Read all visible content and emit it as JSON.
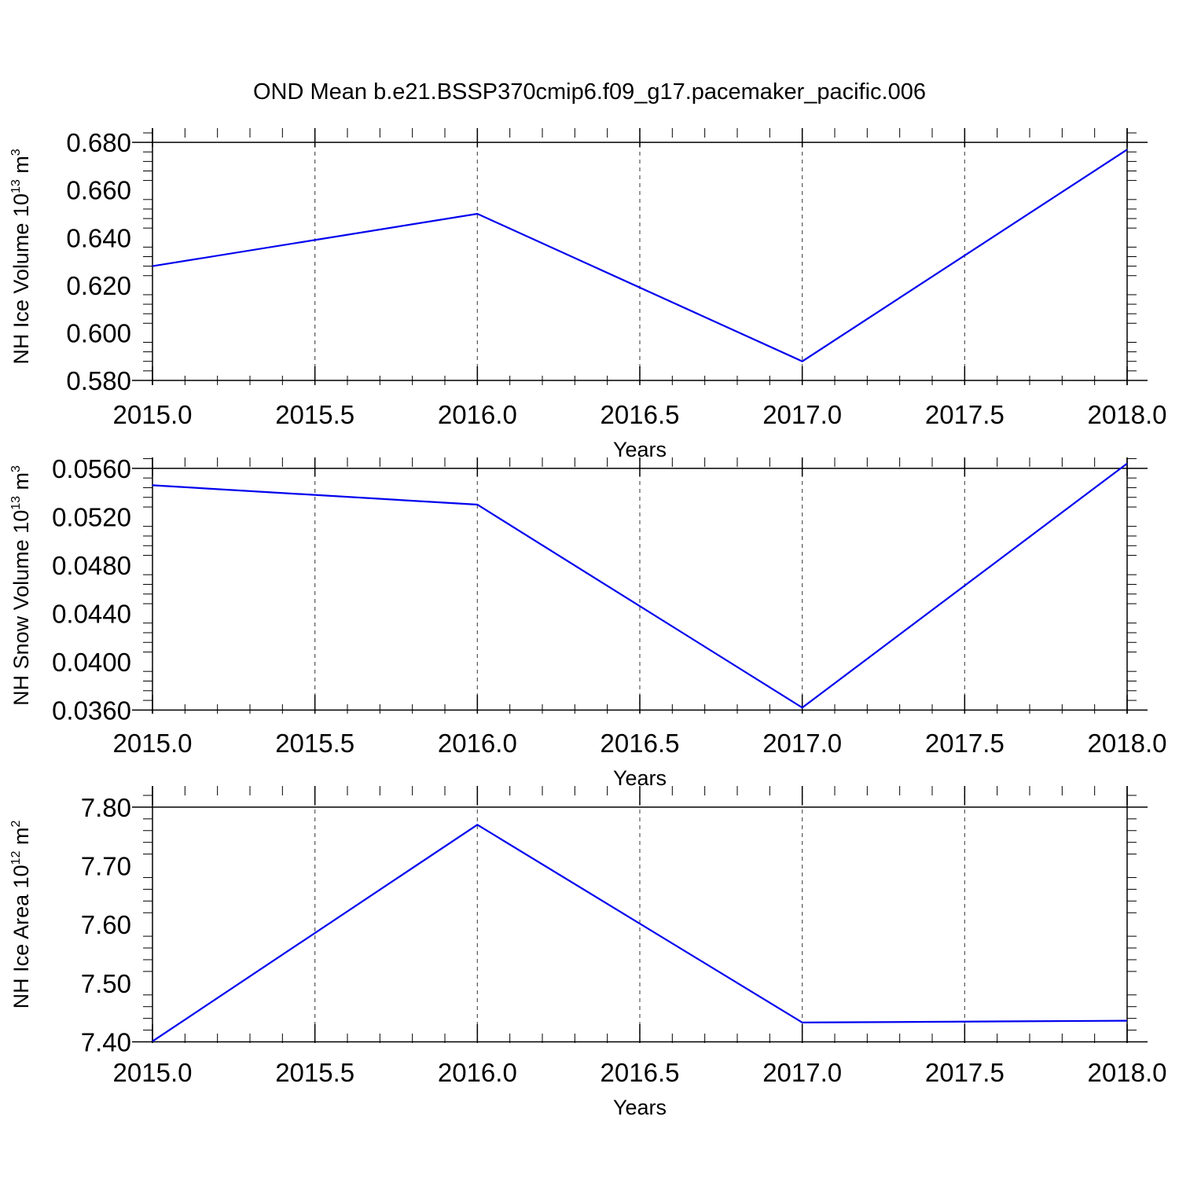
{
  "title": "OND Mean b.e21.BSSP370cmip6.f09_g17.pacemaker_pacific.006",
  "colors": {
    "line": "#0000ee",
    "axes": "#000000",
    "grid": "#555555",
    "background": "#ffffff"
  },
  "chart_data": [
    {
      "type": "line",
      "ylabel": {
        "text": "NH Ice Volume 10",
        "exp": "13",
        "unit": " m",
        "unit_exp": "3"
      },
      "xlabel": "Years",
      "xlim": [
        2015.0,
        2018.0
      ],
      "ylim": [
        0.578,
        0.686
      ],
      "xticks": [
        2015.0,
        2015.5,
        2016.0,
        2016.5,
        2017.0,
        2017.5,
        2018.0
      ],
      "xtick_labels": [
        "2015.0",
        "2015.5",
        "2016.0",
        "2016.5",
        "2017.0",
        "2017.5",
        "2018.0"
      ],
      "yticks": [
        0.58,
        0.6,
        0.62,
        0.64,
        0.66,
        0.68
      ],
      "ytick_labels": [
        "0.580",
        "0.600",
        "0.620",
        "0.640",
        "0.660",
        "0.680"
      ],
      "grid": "vertical dashed at major x ticks",
      "series": [
        {
          "x": [
            2015.0,
            2016.0,
            2017.0,
            2018.0
          ],
          "y": [
            0.628,
            0.65,
            0.588,
            0.677
          ]
        }
      ]
    },
    {
      "type": "line",
      "ylabel": {
        "text": "NH Snow Volume 10",
        "exp": "13",
        "unit": " m",
        "unit_exp": "3"
      },
      "xlabel": "Years",
      "xlim": [
        2015.0,
        2018.0
      ],
      "ylim": [
        0.0357,
        0.0569
      ],
      "xticks": [
        2015.0,
        2015.5,
        2016.0,
        2016.5,
        2017.0,
        2017.5,
        2018.0
      ],
      "xtick_labels": [
        "2015.0",
        "2015.5",
        "2016.0",
        "2016.5",
        "2017.0",
        "2017.5",
        "2018.0"
      ],
      "yticks": [
        0.036,
        0.04,
        0.044,
        0.048,
        0.052,
        0.056
      ],
      "ytick_labels": [
        "0.0360",
        "0.0400",
        "0.0440",
        "0.0480",
        "0.0520",
        "0.0560"
      ],
      "grid": "vertical dashed at major x ticks",
      "series": [
        {
          "x": [
            2015.0,
            2016.0,
            2017.0,
            2018.0
          ],
          "y": [
            0.0546,
            0.053,
            0.0362,
            0.0564
          ]
        }
      ]
    },
    {
      "type": "line",
      "ylabel": {
        "text": "NH Ice Area 10",
        "exp": "12",
        "unit": " m",
        "unit_exp": "2"
      },
      "xlabel": "Years",
      "xlim": [
        2015.0,
        2018.0
      ],
      "ylim": [
        7.398,
        7.836
      ],
      "xticks": [
        2015.0,
        2015.5,
        2016.0,
        2016.5,
        2017.0,
        2017.5,
        2018.0
      ],
      "xtick_labels": [
        "2015.0",
        "2015.5",
        "2016.0",
        "2016.5",
        "2017.0",
        "2017.5",
        "2018.0"
      ],
      "yticks": [
        7.4,
        7.5,
        7.6,
        7.7,
        7.8
      ],
      "ytick_labels": [
        "7.40",
        "7.50",
        "7.60",
        "7.70",
        "7.80"
      ],
      "grid": "vertical dashed at major x ticks",
      "series": [
        {
          "x": [
            2015.0,
            2016.0,
            2017.0,
            2018.0
          ],
          "y": [
            7.401,
            7.77,
            7.433,
            7.436
          ]
        }
      ]
    }
  ]
}
